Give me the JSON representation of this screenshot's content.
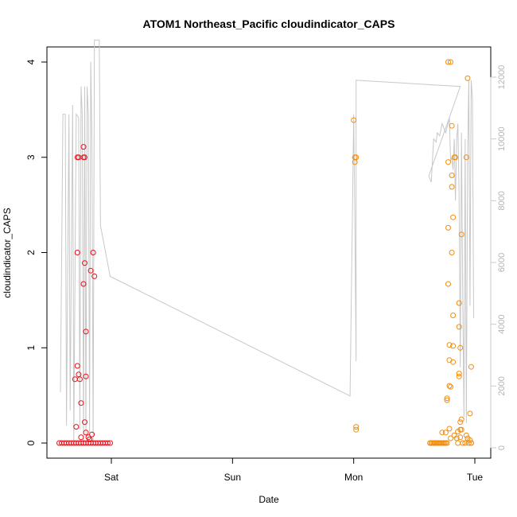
{
  "chart_data": {
    "type": "scatter",
    "title": "ATOM1 Northeast_Pacific cloudindicator_CAPS",
    "xlabel": "Date",
    "ylabel": "cloudindicator_CAPS",
    "x_unit": "days",
    "x_ticks": [
      {
        "label": "Sat",
        "value": 1.0
      },
      {
        "label": "Sun",
        "value": 2.0
      },
      {
        "label": "Mon",
        "value": 3.0
      },
      {
        "label": "Tue",
        "value": 4.0
      }
    ],
    "xlim": [
      0.52,
      4.06
    ],
    "ylim": [
      0,
      4
    ],
    "y_ticks": [
      0,
      1,
      2,
      3,
      4
    ],
    "y2lim": [
      0,
      12000
    ],
    "y2_ticks": [
      0,
      2000,
      4000,
      6000,
      8000,
      10000,
      12000
    ],
    "grid": false,
    "colors": {
      "red_points": "#e8101a",
      "orange_points": "#f28c0c",
      "line": "#c8c8c8"
    },
    "series": [
      {
        "color": "red",
        "points": [
          [
            0.57,
            0
          ],
          [
            0.59,
            0
          ],
          [
            0.61,
            0
          ],
          [
            0.63,
            0
          ],
          [
            0.65,
            0
          ],
          [
            0.67,
            0
          ],
          [
            0.69,
            0
          ],
          [
            0.71,
            0
          ],
          [
            0.73,
            0
          ],
          [
            0.75,
            0
          ],
          [
            0.77,
            0
          ],
          [
            0.79,
            0
          ],
          [
            0.81,
            0
          ],
          [
            0.83,
            0
          ],
          [
            0.85,
            0
          ],
          [
            0.87,
            0
          ],
          [
            0.89,
            0
          ],
          [
            0.91,
            0
          ],
          [
            0.93,
            0
          ],
          [
            0.95,
            0
          ],
          [
            0.97,
            0
          ],
          [
            0.99,
            0
          ],
          [
            0.7,
            0.67
          ],
          [
            0.71,
            0.17
          ],
          [
            0.72,
            0.81
          ],
          [
            0.72,
            2.0
          ],
          [
            0.72,
            3.0
          ],
          [
            0.73,
            0.72
          ],
          [
            0.73,
            3.0
          ],
          [
            0.74,
            0.67
          ],
          [
            0.75,
            0.42
          ],
          [
            0.75,
            0.06
          ],
          [
            0.77,
            3.11
          ],
          [
            0.77,
            3.0
          ],
          [
            0.77,
            1.67
          ],
          [
            0.78,
            3.0
          ],
          [
            0.78,
            1.89
          ],
          [
            0.78,
            0.22
          ],
          [
            0.79,
            0.11
          ],
          [
            0.79,
            1.17
          ],
          [
            0.79,
            0.7
          ],
          [
            0.81,
            0.06
          ],
          [
            0.82,
            0.04
          ],
          [
            0.83,
            1.81
          ],
          [
            0.84,
            0.09
          ],
          [
            0.85,
            2.0
          ],
          [
            0.86,
            1.75
          ]
        ]
      },
      {
        "color": "orange",
        "points": [
          [
            3.0,
            3.39
          ],
          [
            3.01,
            3.0
          ],
          [
            3.01,
            2.95
          ],
          [
            3.02,
            3.0
          ],
          [
            3.02,
            0.17
          ],
          [
            3.02,
            0.14
          ],
          [
            3.63,
            0
          ],
          [
            3.64,
            0
          ],
          [
            3.65,
            0
          ],
          [
            3.66,
            0
          ],
          [
            3.67,
            0
          ],
          [
            3.68,
            0
          ],
          [
            3.69,
            0
          ],
          [
            3.7,
            0
          ],
          [
            3.71,
            0
          ],
          [
            3.72,
            0
          ],
          [
            3.73,
            0
          ],
          [
            3.74,
            0
          ],
          [
            3.75,
            0
          ],
          [
            3.76,
            0
          ],
          [
            3.77,
            0
          ],
          [
            3.73,
            0.11
          ],
          [
            3.76,
            0.11
          ],
          [
            3.77,
            0.45
          ],
          [
            3.77,
            0.47
          ],
          [
            3.78,
            4.0
          ],
          [
            3.78,
            2.95
          ],
          [
            3.78,
            2.26
          ],
          [
            3.78,
            1.67
          ],
          [
            3.79,
            1.03
          ],
          [
            3.79,
            0.87
          ],
          [
            3.79,
            0.6
          ],
          [
            3.79,
            0.15
          ],
          [
            3.8,
            4.0
          ],
          [
            3.8,
            0.59
          ],
          [
            3.8,
            0.05
          ],
          [
            3.81,
            3.33
          ],
          [
            3.81,
            2.81
          ],
          [
            3.81,
            2.69
          ],
          [
            3.81,
            2.0
          ],
          [
            3.82,
            2.37
          ],
          [
            3.82,
            1.34
          ],
          [
            3.82,
            1.02
          ],
          [
            3.82,
            0.85
          ],
          [
            3.83,
            3.0
          ],
          [
            3.83,
            0.08
          ],
          [
            3.84,
            3.0
          ],
          [
            3.85,
            0.05
          ],
          [
            3.86,
            0.12
          ],
          [
            3.86,
            0
          ],
          [
            3.87,
            1.47
          ],
          [
            3.87,
            1.22
          ],
          [
            3.87,
            0.73
          ],
          [
            3.87,
            0.7
          ],
          [
            3.88,
            1.0
          ],
          [
            3.88,
            0.22
          ],
          [
            3.88,
            0.14
          ],
          [
            3.88,
            0.06
          ],
          [
            3.89,
            2.19
          ],
          [
            3.89,
            0.25
          ],
          [
            3.89,
            0.14
          ],
          [
            3.9,
            0
          ],
          [
            3.92,
            0
          ],
          [
            3.93,
            3.0
          ],
          [
            3.93,
            0.08
          ],
          [
            3.94,
            0.05
          ],
          [
            3.94,
            3.83
          ],
          [
            3.95,
            0
          ],
          [
            3.96,
            0.31
          ],
          [
            3.96,
            0.03
          ],
          [
            3.97,
            0.8
          ],
          [
            3.97,
            0
          ],
          [
            3.97,
            0
          ]
        ]
      }
    ],
    "line_series": {
      "axis": "right",
      "points": [
        [
          0.58,
          1800
        ],
        [
          0.6,
          10800
        ],
        [
          0.62,
          10800
        ],
        [
          0.63,
          720
        ],
        [
          0.65,
          10800
        ],
        [
          0.66,
          1200
        ],
        [
          0.68,
          11100
        ],
        [
          0.69,
          240
        ],
        [
          0.71,
          10800
        ],
        [
          0.73,
          10700
        ],
        [
          0.74,
          600
        ],
        [
          0.75,
          11700
        ],
        [
          0.76,
          10800
        ],
        [
          0.77,
          120
        ],
        [
          0.78,
          11700
        ],
        [
          0.79,
          300
        ],
        [
          0.8,
          11700
        ],
        [
          0.81,
          10800
        ],
        [
          0.82,
          480
        ],
        [
          0.83,
          12500
        ],
        [
          0.84,
          10000
        ],
        [
          0.85,
          120
        ],
        [
          0.86,
          13200
        ],
        [
          0.9,
          13200
        ],
        [
          0.91,
          7200
        ],
        [
          0.99,
          5550
        ],
        [
          2.97,
          1680
        ],
        [
          3.0,
          10800
        ],
        [
          3.01,
          7200
        ],
        [
          3.02,
          2800
        ],
        [
          3.02,
          11900
        ],
        [
          3.88,
          11700
        ],
        [
          3.62,
          8800
        ],
        [
          3.64,
          8600
        ],
        [
          3.66,
          10000
        ],
        [
          3.68,
          9900
        ],
        [
          3.69,
          10200
        ],
        [
          3.71,
          10100
        ],
        [
          3.73,
          10500
        ],
        [
          3.76,
          10200
        ],
        [
          3.78,
          10500
        ],
        [
          3.79,
          10700
        ],
        [
          3.8,
          9300
        ],
        [
          3.81,
          9400
        ],
        [
          3.82,
          9000
        ],
        [
          3.83,
          10000
        ],
        [
          3.84,
          8000
        ],
        [
          3.85,
          10000
        ],
        [
          3.86,
          10500
        ],
        [
          3.87,
          8200
        ],
        [
          3.88,
          2600
        ],
        [
          3.89,
          10200
        ],
        [
          3.9,
          4800
        ],
        [
          3.91,
          1000
        ],
        [
          3.92,
          10000
        ],
        [
          3.93,
          800
        ],
        [
          3.94,
          9400
        ],
        [
          3.95,
          11900
        ],
        [
          3.96,
          4600
        ],
        [
          3.97,
          11900
        ],
        [
          3.98,
          11300
        ],
        [
          3.99,
          4200
        ]
      ]
    }
  }
}
